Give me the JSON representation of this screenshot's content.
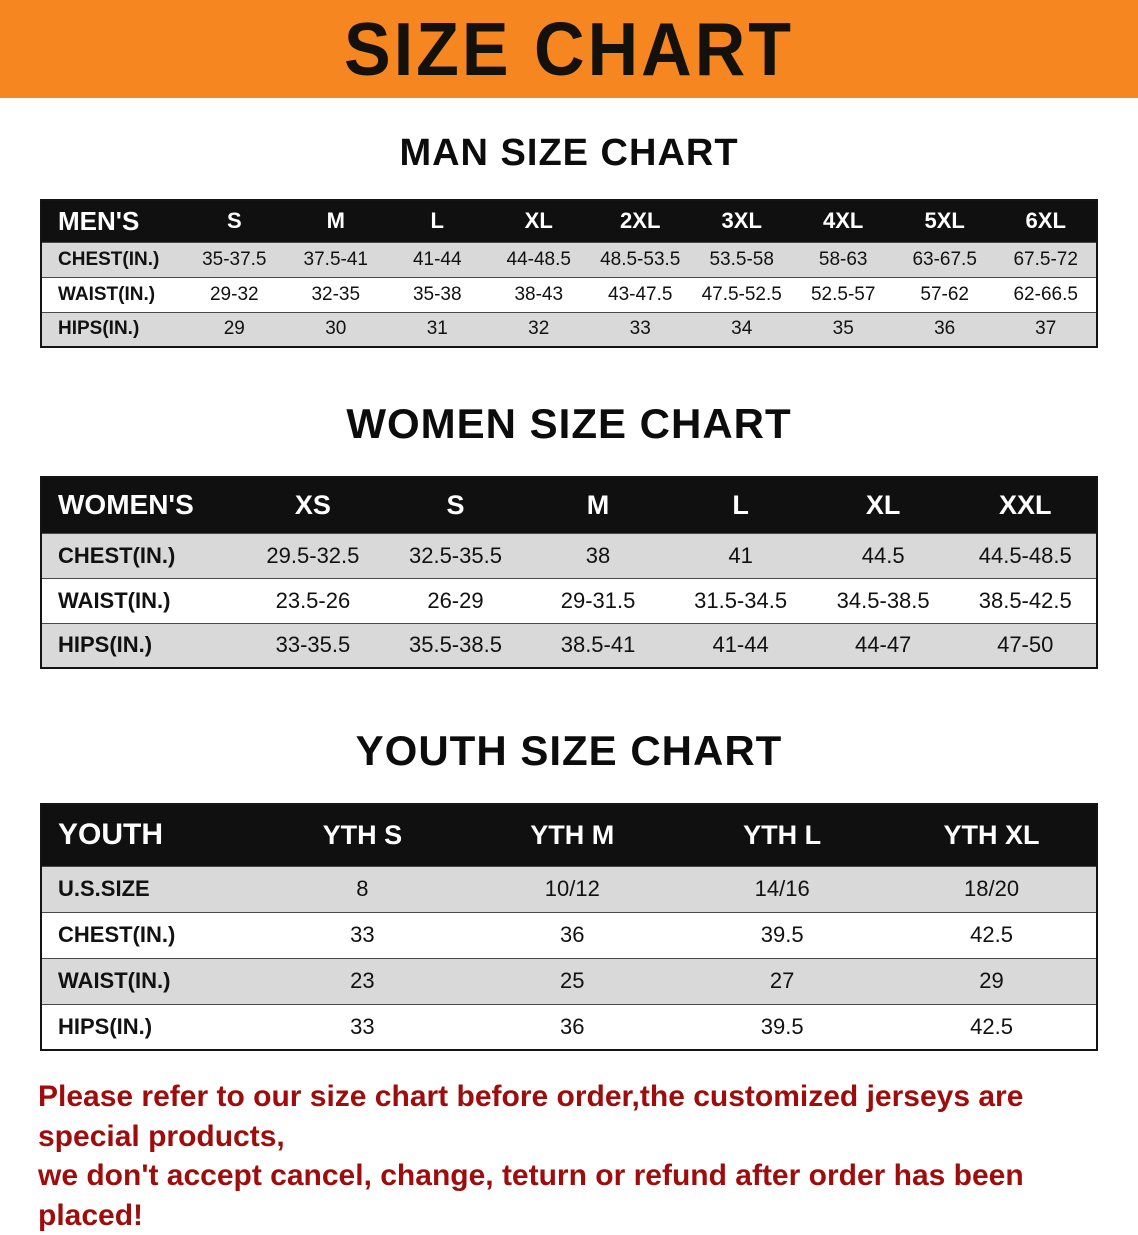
{
  "banner": {
    "title": "SIZE CHART"
  },
  "sections": {
    "men": {
      "heading": "MAN SIZE CHART"
    },
    "women": {
      "heading": "WOMEN SIZE CHART"
    },
    "youth": {
      "heading": "YOUTH SIZE CHART"
    }
  },
  "tables": {
    "men": {
      "label": "MEN'S",
      "columns": [
        "S",
        "M",
        "L",
        "XL",
        "2XL",
        "3XL",
        "4XL",
        "5XL",
        "6XL"
      ],
      "rows": [
        {
          "label": "CHEST(IN.)",
          "values": [
            "35-37.5",
            "37.5-41",
            "41-44",
            "44-48.5",
            "48.5-53.5",
            "53.5-58",
            "58-63",
            "63-67.5",
            "67.5-72"
          ]
        },
        {
          "label": "WAIST(IN.)",
          "values": [
            "29-32",
            "32-35",
            "35-38",
            "38-43",
            "43-47.5",
            "47.5-52.5",
            "52.5-57",
            "57-62",
            "62-66.5"
          ]
        },
        {
          "label": "HIPS(IN.)",
          "values": [
            "29",
            "30",
            "31",
            "32",
            "33",
            "34",
            "35",
            "36",
            "37"
          ]
        }
      ]
    },
    "women": {
      "label": "WOMEN'S",
      "columns": [
        "XS",
        "S",
        "M",
        "L",
        "XL",
        "XXL"
      ],
      "rows": [
        {
          "label": "CHEST(IN.)",
          "values": [
            "29.5-32.5",
            "32.5-35.5",
            "38",
            "41",
            "44.5",
            "44.5-48.5"
          ]
        },
        {
          "label": "WAIST(IN.)",
          "values": [
            "23.5-26",
            "26-29",
            "29-31.5",
            "31.5-34.5",
            "34.5-38.5",
            "38.5-42.5"
          ]
        },
        {
          "label": "HIPS(IN.)",
          "values": [
            "33-35.5",
            "35.5-38.5",
            "38.5-41",
            "41-44",
            "44-47",
            "47-50"
          ]
        }
      ]
    },
    "youth": {
      "label": "YOUTH",
      "columns": [
        "YTH S",
        "YTH M",
        "YTH L",
        "YTH XL"
      ],
      "rows": [
        {
          "label": "U.S.SIZE",
          "values": [
            "8",
            "10/12",
            "14/16",
            "18/20"
          ]
        },
        {
          "label": "CHEST(IN.)",
          "values": [
            "33",
            "36",
            "39.5",
            "42.5"
          ]
        },
        {
          "label": "WAIST(IN.)",
          "values": [
            "23",
            "25",
            "27",
            "29"
          ]
        },
        {
          "label": "HIPS(IN.)",
          "values": [
            "33",
            "36",
            "39.5",
            "42.5"
          ]
        }
      ]
    }
  },
  "footer": {
    "line1": "Please refer to our size chart before order,the customized jerseys are special products,",
    "line2": "we don't accept cancel, change, teturn or refund after order has been placed!"
  },
  "colors": {
    "banner_bg": "#f6861f",
    "table_header_bg": "#101010",
    "row_shade": "#d9d9d9",
    "footer_text": "#9e0c0c"
  }
}
